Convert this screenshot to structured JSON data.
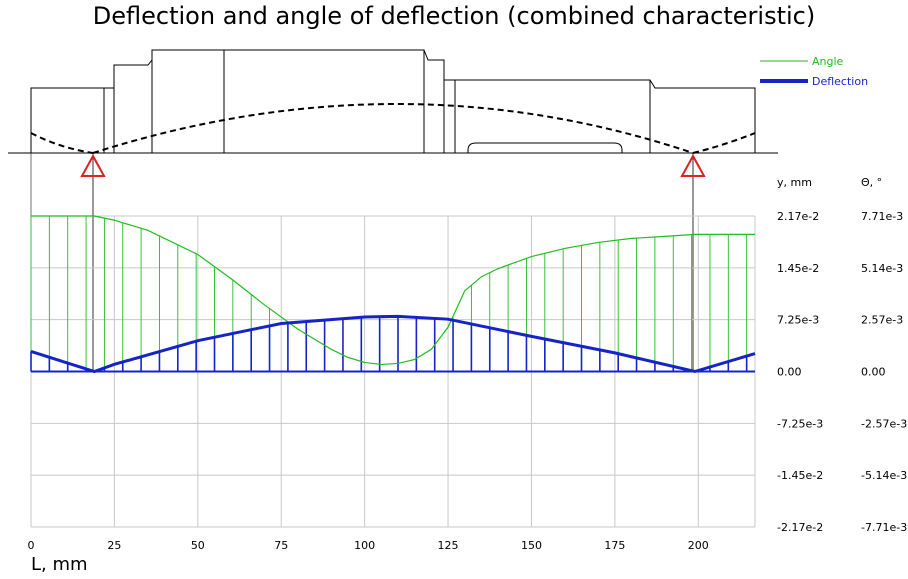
{
  "title": "Deflection and angle of deflection (combined characteristic)",
  "chart_data": {
    "type": "line",
    "title": "Deflection and angle of deflection (combined characteristic)",
    "xlabel": "L, mm",
    "ylabel_left": "y, mm",
    "ylabel_right": "Θ, °",
    "xlim": [
      0,
      217
    ],
    "ylim_left": [
      -0.0217,
      0.0217
    ],
    "ylim_right": [
      -0.00771,
      0.00771
    ],
    "x_ticks": [
      "0",
      "25",
      "50",
      "75",
      "100",
      "125",
      "150",
      "175",
      "200"
    ],
    "x_tick_values": [
      0,
      25,
      50,
      75,
      100,
      125,
      150,
      175,
      200
    ],
    "y_ticks_left": [
      "2.17e-2",
      "1.45e-2",
      "7.25e-3",
      "0.00",
      "-7.25e-3",
      "-1.45e-2",
      "-2.17e-2"
    ],
    "y_ticks_right": [
      "7.71e-3",
      "5.14e-3",
      "2.57e-3",
      "0.00",
      "-2.57e-3",
      "-5.14e-3",
      "-7.71e-3"
    ],
    "grid": true,
    "legend_position": "top-right",
    "supports_x": [
      19,
      199
    ],
    "series": [
      {
        "name": "Angle",
        "color": "#22bb22",
        "axis": "right",
        "x": [
          0,
          10,
          19,
          25,
          35,
          50,
          60,
          70,
          80,
          85,
          90,
          95,
          100,
          105,
          110,
          115,
          120,
          125,
          130,
          135,
          140,
          150,
          160,
          170,
          180,
          190,
          199,
          210,
          217
        ],
        "y": [
          0.00771,
          0.00771,
          0.00771,
          0.0075,
          0.007,
          0.0058,
          0.0046,
          0.0033,
          0.0021,
          0.0016,
          0.0011,
          0.0007,
          0.00045,
          0.00035,
          0.0004,
          0.0006,
          0.0011,
          0.0022,
          0.004,
          0.0047,
          0.0051,
          0.0057,
          0.0061,
          0.0064,
          0.0066,
          0.0067,
          0.0068,
          0.0068,
          0.0068
        ]
      },
      {
        "name": "Deflection",
        "color": "#1424c8",
        "axis": "left",
        "x": [
          0,
          19,
          25,
          50,
          75,
          100,
          110,
          125,
          150,
          175,
          199,
          217
        ],
        "y": [
          0.0028,
          0.0,
          0.001,
          0.0043,
          0.0067,
          0.0076,
          0.0077,
          0.0073,
          0.0049,
          0.0026,
          0.0,
          0.0025
        ]
      }
    ]
  }
}
